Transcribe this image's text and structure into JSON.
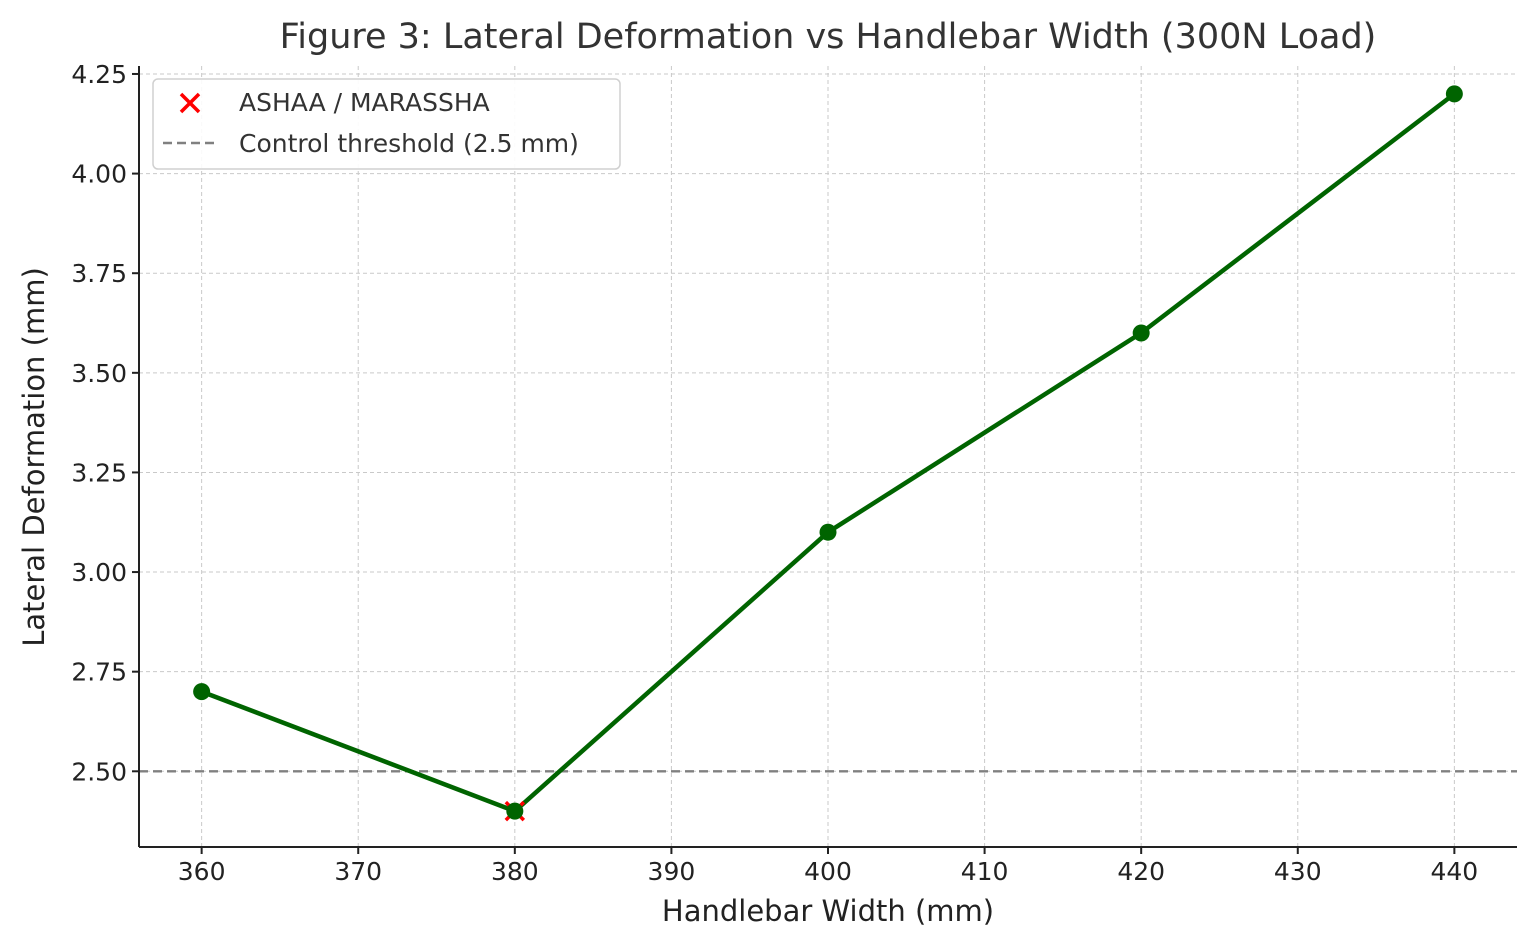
{
  "chart_data": {
    "type": "line",
    "title": "Figure 3: Lateral Deformation vs Handlebar Width (300N Load)",
    "xlabel": "Handlebar Width (mm)",
    "ylabel": "Lateral Deformation (mm)",
    "xlim": [
      356,
      444
    ],
    "ylim": [
      2.31,
      4.27
    ],
    "x_ticks": [
      360,
      370,
      380,
      390,
      400,
      410,
      420,
      430,
      440
    ],
    "y_ticks": [
      2.5,
      2.75,
      3.0,
      3.25,
      3.5,
      3.75,
      4.0,
      4.25
    ],
    "x_tick_labels": [
      "360",
      "370",
      "380",
      "390",
      "400",
      "410",
      "420",
      "430",
      "440"
    ],
    "y_tick_labels": [
      "2.50",
      "2.75",
      "3.00",
      "3.25",
      "3.50",
      "3.75",
      "4.00",
      "4.25"
    ],
    "grid": true,
    "legend_position": "top-left",
    "series": [
      {
        "kind": "line",
        "color": "#006400",
        "marker": "circle",
        "x": [
          360,
          380,
          400,
          420,
          440
        ],
        "y": [
          2.7,
          2.4,
          3.1,
          3.6,
          4.2
        ]
      },
      {
        "name": "ASHAA / MARASSHA",
        "kind": "scatter",
        "color": "#ff0000",
        "marker": "x",
        "x": [
          380
        ],
        "y": [
          2.4
        ]
      }
    ],
    "reference_lines": [
      {
        "name": "Control threshold (2.5 mm)",
        "orientation": "horizontal",
        "value": 2.5,
        "color": "#808080",
        "style": "dashed"
      }
    ]
  }
}
